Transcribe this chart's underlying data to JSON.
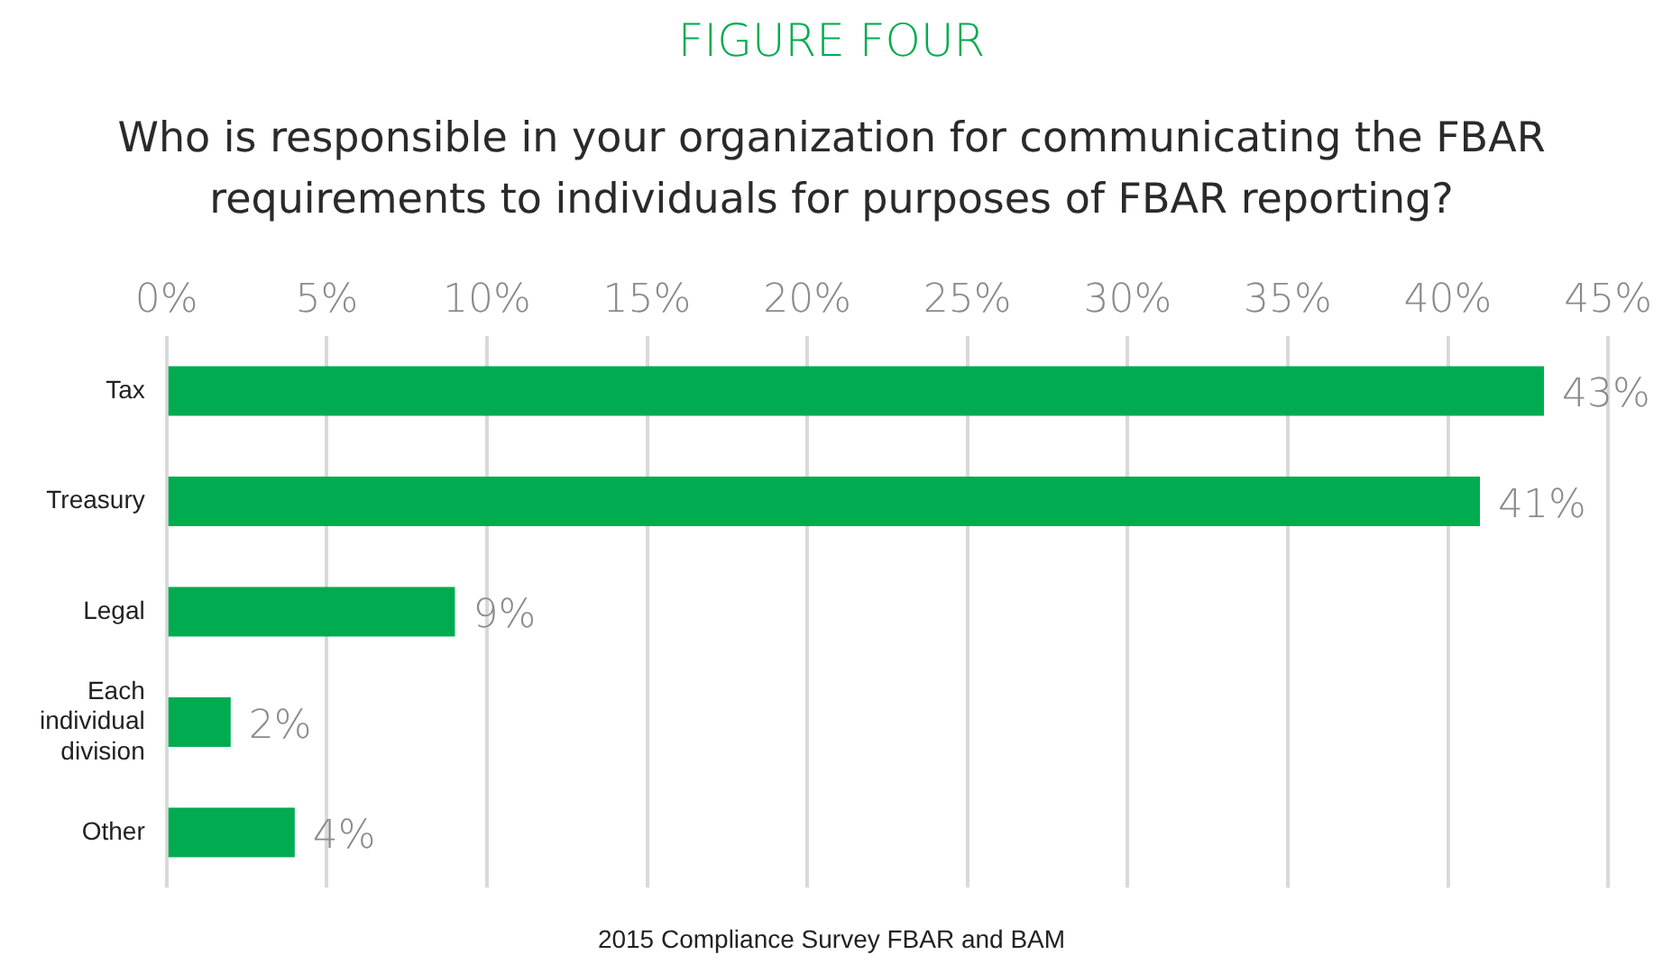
{
  "chart_data": {
    "type": "bar",
    "orientation": "horizontal",
    "title": "FIGURE FOUR",
    "subtitle": "Who is responsible in your organization for communicating the FBAR requirements to individuals for purposes of FBAR reporting?",
    "categories": [
      "Tax",
      "Treasury",
      "Legal",
      "Each individual division",
      "Other"
    ],
    "values": [
      43,
      41,
      9,
      2,
      4
    ],
    "value_labels": [
      "43%",
      "41%",
      "9%",
      "2%",
      "4%"
    ],
    "color": "#00ac4f",
    "xlim": [
      0,
      45
    ],
    "xticks": [
      {
        "value": 0,
        "label": "0%"
      },
      {
        "value": 5,
        "label": "5%"
      },
      {
        "value": 10,
        "label": "10%"
      },
      {
        "value": 15,
        "label": "15%"
      },
      {
        "value": 20,
        "label": "20%"
      },
      {
        "value": 25,
        "label": "25%"
      },
      {
        "value": 30,
        "label": "30%"
      },
      {
        "value": 35,
        "label": "35%"
      },
      {
        "value": 40,
        "label": "40%"
      },
      {
        "value": 45,
        "label": "45%"
      }
    ],
    "grid": "x",
    "annotations": [
      "2015 Compliance Survey FBAR and BAM"
    ]
  }
}
